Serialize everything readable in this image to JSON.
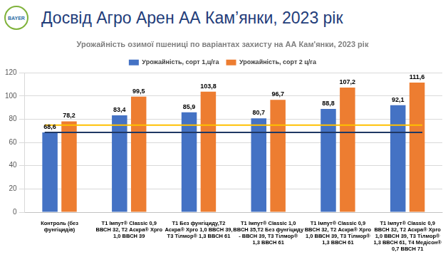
{
  "header": {
    "title": "Досвід Агро Арен АА Кам’янки, 2023 рік",
    "logo_text": "BAYER"
  },
  "chart_data": {
    "type": "bar",
    "title": "Урожайність озимої пшениці по варіантах захисту на АА Кам'янки, 2023 рік",
    "categories": [
      "Контроль (без фунгіцидів)",
      "Т1 Імпут® Classic 0,9 ВВСН 32, Т2 Аскра® Xpro 1,0 ВВСН 39",
      "Т1 Без фунгіциду,Т2 Аскра® Xpro 1,0 ВВСН 39, Т3 Тілмор® 1,3 ВВСН 61",
      "Т1 Імпут® Classic 1,0 ВВСН 35,Т2 Без фунгіциду - ВВСН 39, Т3 Тілмор® 1,3 ВВСН 61",
      "Т1 Імпут® Classic 0,9 ВВСН 32, Т2 Аскра® Xpro 1,0 ВВСН 39, Т3 Тілмор® 1,3 ВВСН 61",
      "Т1 Імпут® Classic 0,9 ВВСН 32, Т2 Аскра® Xpro 1,0 ВВСН 39, Т3 Тілмор® 1,3 ВВСН 61, Т4 Медісон® 0,7 ВВСН 71"
    ],
    "series": [
      {
        "name": "Урожайність, сорт 1,ц/га",
        "color": "#4472c4",
        "values": [
          68.6,
          83.4,
          85.9,
          80.7,
          88.8,
          92.1
        ],
        "value_labels": [
          "68,6",
          "83,4",
          "85,9",
          "80,7",
          "88,8",
          "92,1"
        ]
      },
      {
        "name": "Урожайність, сорт 2 ц/га",
        "color": "#ed7d31",
        "values": [
          78.2,
          99.5,
          103.8,
          96.7,
          107.2,
          111.6
        ],
        "value_labels": [
          "78,2",
          "99,5",
          "103,8",
          "96,7",
          "107,2",
          "111,6"
        ]
      }
    ],
    "hlines": [
      {
        "value": 68.6,
        "color": "#1f3864"
      },
      {
        "value": 75,
        "color": "#ffc000"
      }
    ],
    "ylim": [
      0,
      120
    ],
    "yticks": [
      0,
      20,
      40,
      60,
      80,
      100,
      120
    ],
    "grid": true,
    "legend": "top",
    "data_labels": true
  }
}
